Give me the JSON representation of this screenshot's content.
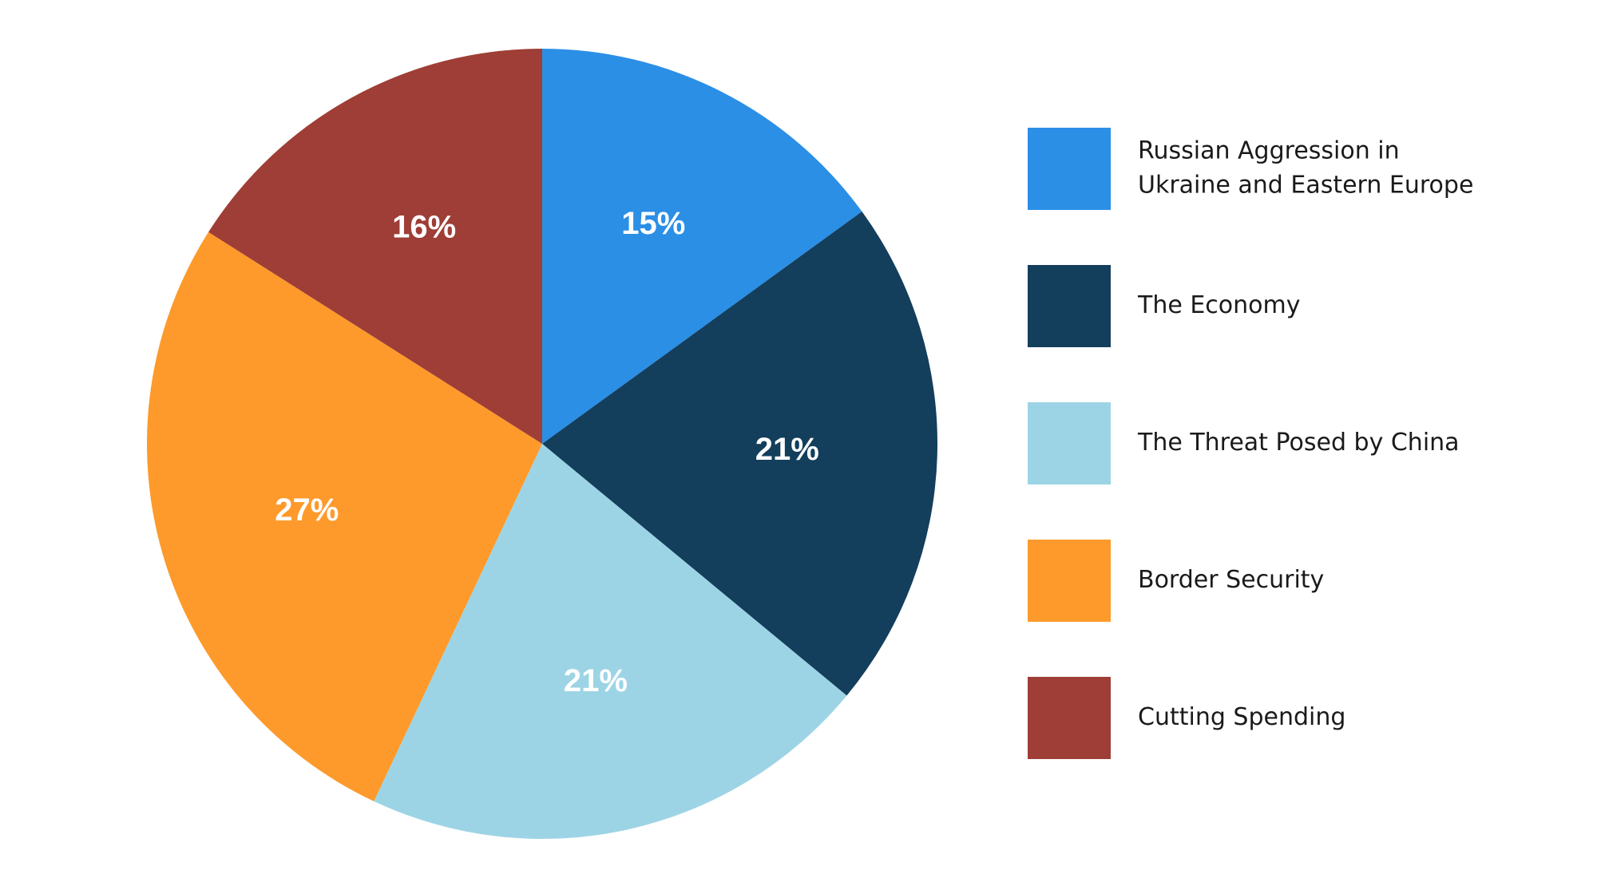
{
  "chart_data": {
    "type": "pie",
    "title": "",
    "slices": [
      {
        "label": "Russian Aggression in Ukraine and Eastern Europe",
        "value": 15,
        "value_label": "15%",
        "color": "#2B8FE6"
      },
      {
        "label": "The Economy",
        "value": 21,
        "value_label": "21%",
        "color": "#133E5C"
      },
      {
        "label": "The Threat Posed by China",
        "value": 21,
        "value_label": "21%",
        "color": "#9DD4E5"
      },
      {
        "label": "Border Security",
        "value": 27,
        "value_label": "27%",
        "color": "#FD9A2B"
      },
      {
        "label": "Cutting Spending",
        "value": 16,
        "value_label": "16%",
        "color": "#9E3E36"
      }
    ],
    "legend": {
      "position": "right",
      "entries": [
        {
          "lines": [
            "Russian Aggression in",
            "Ukraine and Eastern Europe"
          ],
          "color": "#2B8FE6"
        },
        {
          "lines": [
            "The Economy"
          ],
          "color": "#133E5C"
        },
        {
          "lines": [
            "The Threat Posed by China"
          ],
          "color": "#9DD4E5"
        },
        {
          "lines": [
            "Border Security"
          ],
          "color": "#FD9A2B"
        },
        {
          "lines": [
            "Cutting Spending"
          ],
          "color": "#9E3E36"
        }
      ]
    }
  }
}
